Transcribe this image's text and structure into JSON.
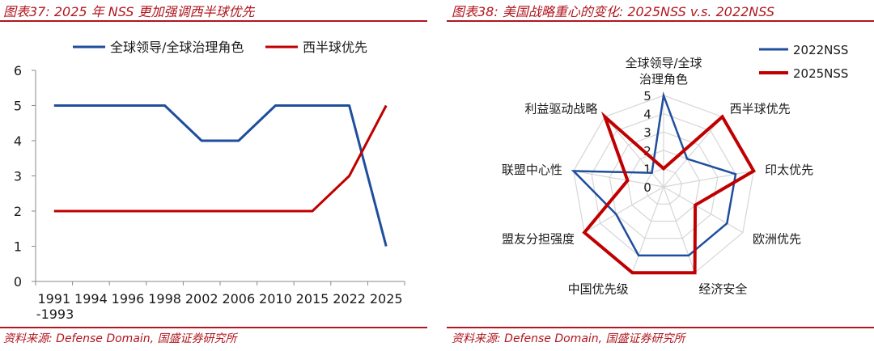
{
  "left": {
    "title": "图表37:  2025 年 NSS 更加强调西半球优先",
    "source": "资料来源:  Defense Domain,  国盛证券研究所"
  },
  "right": {
    "title": "图表38:  美国战略重心的变化:  2025NSS v.s. 2022NSS",
    "source": "资料来源:  Defense Domain,  国盛证券研究所"
  },
  "chart_data": [
    {
      "type": "line",
      "title": "",
      "xlabel": "",
      "ylabel": "",
      "categories": [
        "1991-1993",
        "1994",
        "1996",
        "1998",
        "2002",
        "2006",
        "2010",
        "2015",
        "2022",
        "2025"
      ],
      "category_lines": [
        [
          "1991",
          "-1993"
        ],
        [
          "1994"
        ],
        [
          "1996"
        ],
        [
          "1998"
        ],
        [
          "2002"
        ],
        [
          "2006"
        ],
        [
          "2010"
        ],
        [
          "2015"
        ],
        [
          "2022"
        ],
        [
          "2025"
        ]
      ],
      "ylim": [
        0,
        6
      ],
      "yticks": [
        0,
        1,
        2,
        3,
        4,
        5,
        6
      ],
      "grid": false,
      "legend_position": "top",
      "series": [
        {
          "name": "全球领导/全球治理角色",
          "color": "#1f4e9c",
          "values": [
            5,
            5,
            5,
            5,
            4,
            4,
            5,
            5,
            5,
            1
          ]
        },
        {
          "name": "西半球优先",
          "color": "#c00000",
          "values": [
            2,
            2,
            2,
            2,
            2,
            2,
            2,
            2,
            3,
            5
          ]
        }
      ]
    },
    {
      "type": "radar",
      "title": "",
      "range": [
        0,
        5
      ],
      "ticks": [
        0,
        1,
        2,
        3,
        4,
        5
      ],
      "grid": true,
      "legend_position": "top-right",
      "axes": [
        [
          "全球领导/全球",
          "治理角色"
        ],
        [
          "西半球优先"
        ],
        [
          "印太优先"
        ],
        [
          "欧洲优先"
        ],
        [
          "经济安全"
        ],
        [
          "中国优先级"
        ],
        [
          "盟友分担强度"
        ],
        [
          "联盟中心性"
        ],
        [
          "利益驱动战略"
        ]
      ],
      "series": [
        {
          "name": "2022NSS",
          "color": "#1f4e9c",
          "values": [
            5,
            2,
            4,
            4,
            4,
            4,
            3,
            5,
            1
          ]
        },
        {
          "name": "2025NSS",
          "color": "#c00000",
          "values": [
            1,
            5,
            5,
            2,
            5,
            5,
            5,
            2,
            5
          ]
        }
      ]
    }
  ]
}
